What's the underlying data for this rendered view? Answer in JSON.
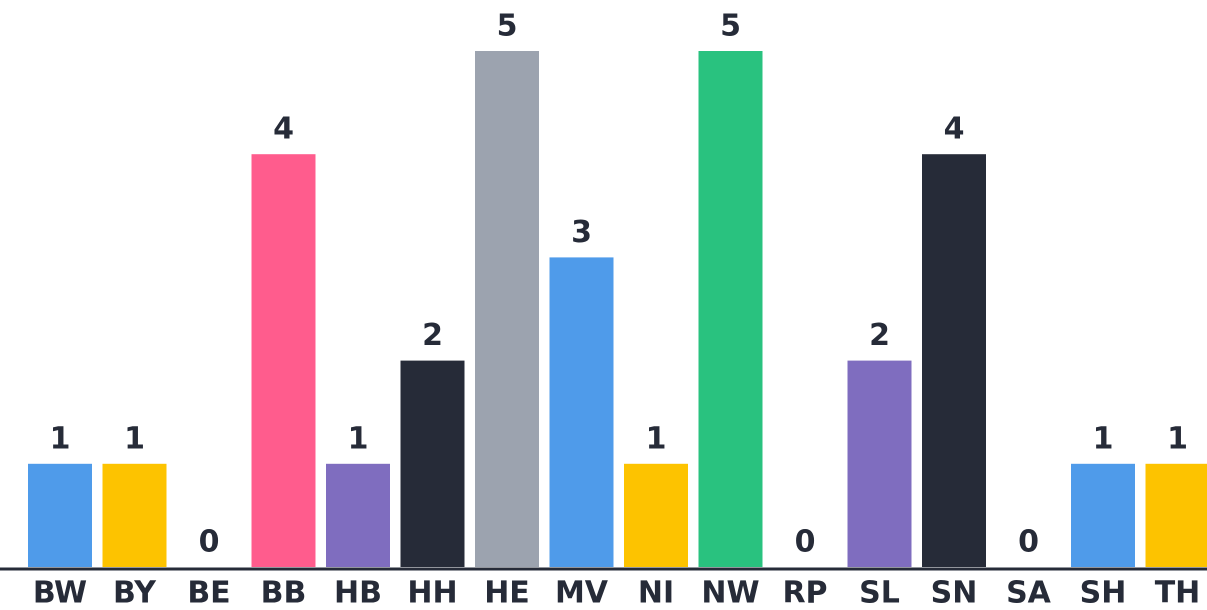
{
  "chart_data": {
    "type": "bar",
    "categories": [
      "BW",
      "BY",
      "BE",
      "BB",
      "HB",
      "HH",
      "HE",
      "MV",
      "NI",
      "NW",
      "RP",
      "SL",
      "SN",
      "SA",
      "SH",
      "TH"
    ],
    "values": [
      1,
      1,
      0,
      4,
      1,
      2,
      5,
      3,
      1,
      5,
      0,
      2,
      4,
      0,
      1,
      1
    ],
    "colors": [
      "#4f9bea",
      "#fdc300",
      "#9ca3af",
      "#ff5c8d",
      "#7f6dbf",
      "#262b38",
      "#9ca3af",
      "#4f9bea",
      "#fdc300",
      "#29c27f",
      "#9ca3af",
      "#7f6dbf",
      "#262b38",
      "#9ca3af",
      "#4f9bea",
      "#fdc300"
    ],
    "ylim": [
      0,
      5
    ]
  }
}
